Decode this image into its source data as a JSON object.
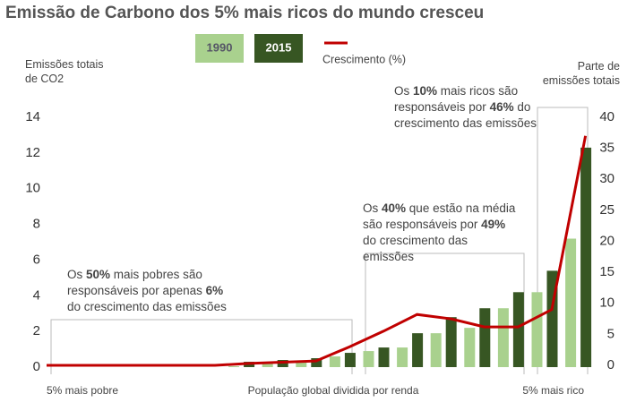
{
  "chart_data": {
    "type": "bar",
    "title": "Emissão de Carbono dos 5% mais ricos do mundo cresceu",
    "y_label": "Emissões totais de CO2",
    "y2_label": "Parte de emissões totais",
    "x_annotations": [
      "5% mais pobre",
      "População global dividida por renda",
      "5% mais rico"
    ],
    "categories": [
      null,
      null,
      null,
      null,
      null,
      null,
      null,
      null,
      null,
      null,
      null,
      null,
      null,
      null,
      null,
      null,
      null
    ],
    "series": [
      {
        "name": "1990",
        "type": "bar",
        "color": "#a9d18e",
        "values": [
          0,
          0,
          0,
          0,
          0,
          0,
          0.05,
          0.2,
          0.3,
          0.6,
          0.9,
          1.1,
          1.9,
          2.2,
          3.3,
          4.2,
          7.2
        ]
      },
      {
        "name": "2015",
        "type": "bar",
        "color": "#375623",
        "values": [
          0,
          0,
          0,
          0,
          0,
          0,
          0.3,
          0.4,
          0.5,
          0.8,
          1.1,
          1.9,
          2.8,
          3.3,
          4.2,
          5.4,
          12.3
        ]
      },
      {
        "name": "Crescimento (%)",
        "type": "line",
        "axis": "y2",
        "color": "#c00000",
        "values": [
          0,
          0,
          0,
          0,
          0,
          0,
          0.3,
          0.5,
          0.7,
          3,
          5.5,
          8.2,
          7.5,
          6.2,
          6.2,
          9,
          37
        ]
      }
    ],
    "ylim": [
      0,
      14
    ],
    "yticks": [
      0,
      2,
      4,
      6,
      8,
      10,
      12,
      14
    ],
    "y2lim": [
      0,
      40
    ],
    "y2ticks": [
      0,
      5,
      10,
      15,
      20,
      25,
      30,
      35,
      40
    ],
    "annotations": [
      {
        "parts": [
          {
            "text": "Os ",
            "bold": false
          },
          {
            "text": "50%",
            "bold": true
          },
          {
            "text": " mais pobres são responsáveis por apenas ",
            "bold": false
          },
          {
            "text": "6%",
            "bold": true
          },
          {
            "text": " do crescimento das emissões",
            "bold": false
          }
        ]
      },
      {
        "parts": [
          {
            "text": "Os ",
            "bold": false
          },
          {
            "text": "40%",
            "bold": true
          },
          {
            "text": " que estão na média são responsáveis por ",
            "bold": false
          },
          {
            "text": "49%",
            "bold": true
          },
          {
            "text": " do crescimento das emissões",
            "bold": false
          }
        ]
      },
      {
        "parts": [
          {
            "text": "Os ",
            "bold": false
          },
          {
            "text": "10%",
            "bold": true
          },
          {
            "text": " mais ricos são responsáveis por ",
            "bold": false
          },
          {
            "text": "46%",
            "bold": true
          },
          {
            "text": " do crescimento das emissões",
            "bold": false
          }
        ]
      }
    ]
  }
}
